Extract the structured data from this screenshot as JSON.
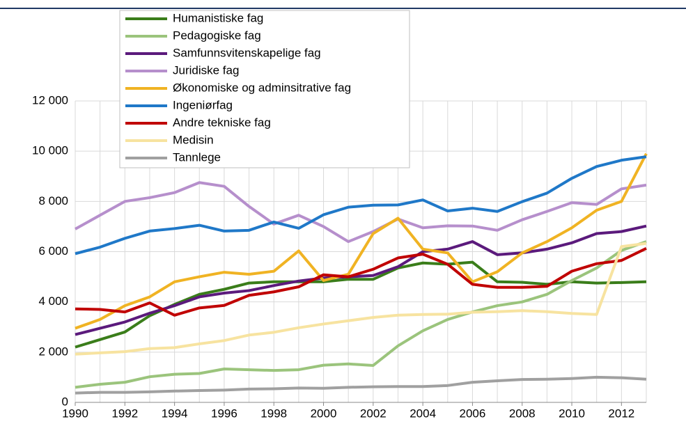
{
  "chart_data": {
    "type": "line",
    "x": [
      1990,
      1991,
      1992,
      1993,
      1994,
      1995,
      1996,
      1997,
      1998,
      1999,
      2000,
      2001,
      2002,
      2003,
      2004,
      2005,
      2006,
      2007,
      2008,
      2009,
      2010,
      2011,
      2012,
      2013
    ],
    "xlim": [
      1990,
      2013
    ],
    "xticks": [
      1990,
      1992,
      1994,
      1996,
      1998,
      2000,
      2002,
      2004,
      2006,
      2008,
      2010,
      2012
    ],
    "ylim": [
      0,
      12000
    ],
    "yticks": [
      0,
      {
        "value": 2000,
        "label": "2 000"
      },
      {
        "value": 4000,
        "label": "4 000"
      },
      {
        "value": 6000,
        "label": "6 000"
      },
      {
        "value": 8000,
        "label": "8 000"
      },
      {
        "value": 10000,
        "label": "10 000"
      },
      {
        "value": 12000,
        "label": "12 000"
      }
    ],
    "grid": true,
    "legend": "top-left",
    "series": [
      {
        "name": "Humanistiske fag",
        "color": "#3a7d1a",
        "values": [
          2200,
          2500,
          2800,
          3450,
          3900,
          4300,
          4500,
          4750,
          4800,
          4800,
          4800,
          4900,
          4900,
          5350,
          5550,
          5500,
          5580,
          4800,
          4780,
          4700,
          4800,
          4750,
          4770,
          4800
        ]
      },
      {
        "name": "Pedagogiske fag",
        "color": "#9bc47c",
        "values": [
          600,
          720,
          800,
          1020,
          1120,
          1150,
          1330,
          1300,
          1270,
          1300,
          1480,
          1530,
          1470,
          2250,
          2850,
          3300,
          3600,
          3850,
          4000,
          4300,
          4850,
          5350,
          6050,
          6400
        ]
      },
      {
        "name": "Samfunnsvitenskapelige fag",
        "color": "#5b1a7c",
        "values": [
          2700,
          2950,
          3200,
          3550,
          3850,
          4200,
          4350,
          4450,
          4650,
          4830,
          4950,
          5000,
          5050,
          5400,
          6000,
          6100,
          6400,
          5880,
          5950,
          6100,
          6350,
          6720,
          6800,
          7020
        ]
      },
      {
        "name": "Juridiske fag",
        "color": "#b68fcc",
        "values": [
          6900,
          7450,
          8000,
          8150,
          8350,
          8750,
          8600,
          7800,
          7100,
          7450,
          7000,
          6400,
          6800,
          7300,
          6950,
          7030,
          7020,
          6850,
          7270,
          7600,
          7950,
          7880,
          8500,
          8650
        ]
      },
      {
        "name": "Økonomiske og adminsitrative fag",
        "color": "#f0b323",
        "values": [
          2950,
          3300,
          3850,
          4200,
          4800,
          5000,
          5180,
          5100,
          5220,
          6030,
          4850,
          5100,
          6720,
          7330,
          6100,
          5950,
          4800,
          5200,
          5950,
          6400,
          6950,
          7650,
          8000,
          9900
        ]
      },
      {
        "name": "Ingeniørfag",
        "color": "#1f78c8",
        "values": [
          5920,
          6180,
          6530,
          6820,
          6920,
          7050,
          6820,
          6850,
          7180,
          6930,
          7470,
          7770,
          7850,
          7860,
          8060,
          7620,
          7730,
          7600,
          7990,
          8330,
          8920,
          9390,
          9640,
          9780
        ]
      },
      {
        "name": "Andre tekniske fag",
        "color": "#c00000",
        "values": [
          3720,
          3700,
          3600,
          3960,
          3470,
          3760,
          3860,
          4260,
          4400,
          4600,
          5080,
          5000,
          5300,
          5750,
          5900,
          5500,
          4700,
          4580,
          4580,
          4620,
          5220,
          5520,
          5650,
          6130
        ]
      },
      {
        "name": "Medisin",
        "color": "#f7e3a0",
        "values": [
          1920,
          1970,
          2020,
          2140,
          2180,
          2330,
          2460,
          2680,
          2790,
          2970,
          3120,
          3250,
          3380,
          3470,
          3500,
          3510,
          3590,
          3610,
          3650,
          3610,
          3540,
          3500,
          6200,
          6330
        ]
      },
      {
        "name": "Tannlege",
        "color": "#a0a0a0",
        "values": [
          370,
          400,
          400,
          420,
          450,
          470,
          490,
          530,
          540,
          570,
          560,
          600,
          620,
          630,
          630,
          670,
          800,
          860,
          910,
          920,
          950,
          1000,
          980,
          920
        ]
      }
    ]
  }
}
